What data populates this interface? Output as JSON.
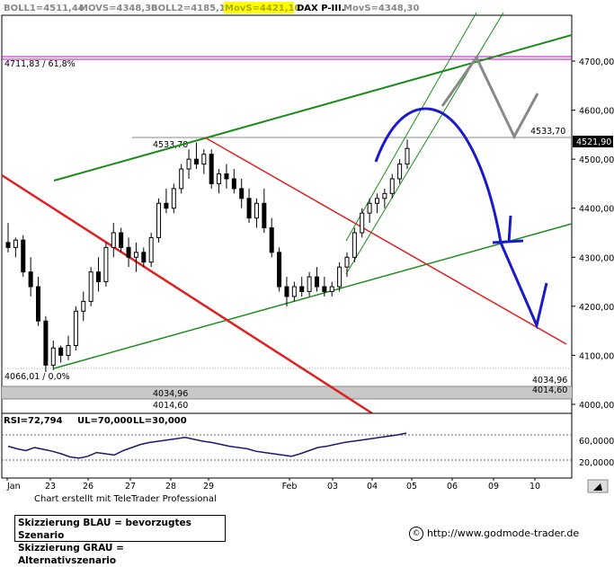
{
  "header": {
    "boll1": "BOLL1=4511,44",
    "movs": "MOVS=4348,30",
    "boll2": "BOLL2=4185,17",
    "movs_s": "MovS=4421,10",
    "title": "DAX P-III.",
    "movs2": "MovS=4348,30"
  },
  "price_axis": {
    "ticks": [
      4000,
      4100,
      4200,
      4300,
      4400,
      4500,
      4600,
      4700
    ],
    "tick_labels": [
      "4000,00",
      "4100,00",
      "4200,00",
      "4300,00",
      "4400,00",
      "4500,00",
      "4600,00",
      "4700,00"
    ],
    "current_price": "4521,90"
  },
  "date_axis": {
    "labels": [
      "Jan",
      "23",
      "26",
      "27",
      "28",
      "29",
      "Feb",
      "03",
      "04",
      "05",
      "06",
      "09",
      "10"
    ]
  },
  "annotations": {
    "fib_high": "4711,83 / 61,8%",
    "fib_low": "4066,01 / 0,0%",
    "high_left": "4533,70",
    "high_right": "4533,70",
    "level_4034_left": "4034,96",
    "level_4034_right": "4034,96",
    "level_4014_left": "4014,60",
    "level_4014_right": "4014,60"
  },
  "rsi": {
    "label": "RSI=72,794",
    "ul": "UL=70,000",
    "ll": "LL=30,000",
    "ticks": [
      "60,0000",
      "20,0000"
    ],
    "values": [
      52,
      48,
      45,
      50,
      47,
      44,
      40,
      35,
      33,
      36,
      42,
      40,
      38,
      45,
      50,
      55,
      58,
      60,
      62,
      64,
      66,
      63,
      60,
      58,
      55,
      52,
      50,
      48,
      44,
      42,
      40,
      38,
      36,
      40,
      45,
      50,
      52,
      55,
      58,
      60,
      62,
      64,
      66,
      68,
      70,
      72.8
    ]
  },
  "chart_data": {
    "type": "candlestick",
    "title": "DAX P-III.",
    "ylim": [
      4000,
      4750
    ],
    "x_labels": [
      "Jan",
      "23",
      "26",
      "27",
      "28",
      "29",
      "Feb",
      "03",
      "04",
      "05",
      "06",
      "09",
      "10"
    ],
    "candles": [
      {
        "o": 4330,
        "h": 4370,
        "l": 4310,
        "c": 4320
      },
      {
        "o": 4320,
        "h": 4340,
        "l": 4300,
        "c": 4335
      },
      {
        "o": 4335,
        "h": 4345,
        "l": 4260,
        "c": 4270
      },
      {
        "o": 4270,
        "h": 4300,
        "l": 4220,
        "c": 4240
      },
      {
        "o": 4240,
        "h": 4260,
        "l": 4160,
        "c": 4170
      },
      {
        "o": 4170,
        "h": 4180,
        "l": 4066,
        "c": 4080
      },
      {
        "o": 4080,
        "h": 4130,
        "l": 4070,
        "c": 4115
      },
      {
        "o": 4115,
        "h": 4120,
        "l": 4085,
        "c": 4100
      },
      {
        "o": 4100,
        "h": 4140,
        "l": 4090,
        "c": 4120
      },
      {
        "o": 4120,
        "h": 4200,
        "l": 4110,
        "c": 4190
      },
      {
        "o": 4190,
        "h": 4230,
        "l": 4170,
        "c": 4210
      },
      {
        "o": 4210,
        "h": 4280,
        "l": 4200,
        "c": 4270
      },
      {
        "o": 4270,
        "h": 4300,
        "l": 4230,
        "c": 4250
      },
      {
        "o": 4250,
        "h": 4330,
        "l": 4240,
        "c": 4320
      },
      {
        "o": 4320,
        "h": 4370,
        "l": 4300,
        "c": 4350
      },
      {
        "o": 4350,
        "h": 4360,
        "l": 4310,
        "c": 4320
      },
      {
        "o": 4320,
        "h": 4340,
        "l": 4280,
        "c": 4300
      },
      {
        "o": 4300,
        "h": 4330,
        "l": 4270,
        "c": 4310
      },
      {
        "o": 4310,
        "h": 4320,
        "l": 4280,
        "c": 4290
      },
      {
        "o": 4290,
        "h": 4350,
        "l": 4280,
        "c": 4340
      },
      {
        "o": 4340,
        "h": 4420,
        "l": 4330,
        "c": 4410
      },
      {
        "o": 4410,
        "h": 4440,
        "l": 4390,
        "c": 4400
      },
      {
        "o": 4400,
        "h": 4450,
        "l": 4390,
        "c": 4440
      },
      {
        "o": 4440,
        "h": 4490,
        "l": 4430,
        "c": 4480
      },
      {
        "o": 4480,
        "h": 4520,
        "l": 4460,
        "c": 4500
      },
      {
        "o": 4500,
        "h": 4534,
        "l": 4480,
        "c": 4490
      },
      {
        "o": 4490,
        "h": 4520,
        "l": 4470,
        "c": 4510
      },
      {
        "o": 4510,
        "h": 4520,
        "l": 4440,
        "c": 4450
      },
      {
        "o": 4450,
        "h": 4480,
        "l": 4430,
        "c": 4470
      },
      {
        "o": 4470,
        "h": 4490,
        "l": 4440,
        "c": 4460
      },
      {
        "o": 4460,
        "h": 4480,
        "l": 4430,
        "c": 4440
      },
      {
        "o": 4440,
        "h": 4460,
        "l": 4400,
        "c": 4420
      },
      {
        "o": 4420,
        "h": 4440,
        "l": 4370,
        "c": 4380
      },
      {
        "o": 4380,
        "h": 4420,
        "l": 4360,
        "c": 4410
      },
      {
        "o": 4410,
        "h": 4440,
        "l": 4350,
        "c": 4360
      },
      {
        "o": 4360,
        "h": 4380,
        "l": 4300,
        "c": 4310
      },
      {
        "o": 4310,
        "h": 4320,
        "l": 4230,
        "c": 4240
      },
      {
        "o": 4240,
        "h": 4260,
        "l": 4200,
        "c": 4220
      },
      {
        "o": 4220,
        "h": 4250,
        "l": 4210,
        "c": 4240
      },
      {
        "o": 4240,
        "h": 4260,
        "l": 4220,
        "c": 4230
      },
      {
        "o": 4230,
        "h": 4270,
        "l": 4220,
        "c": 4260
      },
      {
        "o": 4260,
        "h": 4280,
        "l": 4230,
        "c": 4240
      },
      {
        "o": 4240,
        "h": 4260,
        "l": 4220,
        "c": 4230
      },
      {
        "o": 4230,
        "h": 4250,
        "l": 4220,
        "c": 4240
      },
      {
        "o": 4240,
        "h": 4290,
        "l": 4230,
        "c": 4280
      },
      {
        "o": 4280,
        "h": 4310,
        "l": 4260,
        "c": 4300
      },
      {
        "o": 4300,
        "h": 4360,
        "l": 4290,
        "c": 4350
      },
      {
        "o": 4350,
        "h": 4400,
        "l": 4340,
        "c": 4390
      },
      {
        "o": 4390,
        "h": 4420,
        "l": 4370,
        "c": 4410
      },
      {
        "o": 4410,
        "h": 4430,
        "l": 4390,
        "c": 4420
      },
      {
        "o": 4420,
        "h": 4440,
        "l": 4400,
        "c": 4430
      },
      {
        "o": 4430,
        "h": 4470,
        "l": 4420,
        "c": 4460
      },
      {
        "o": 4460,
        "h": 4500,
        "l": 4450,
        "c": 4490
      },
      {
        "o": 4490,
        "h": 4540,
        "l": 4480,
        "c": 4521.9
      }
    ],
    "levels": [
      4711.83,
      4533.7,
      4066.01,
      4034.96,
      4014.6
    ],
    "legend": [
      "Skizzierung BLAU = bevorzugtes Szenario",
      "Skizzierung GRAU = Alternativszenario"
    ]
  },
  "footer": {
    "credit": "Chart erstellt mit TeleTrader Professional",
    "url": "http://www.godmode-trader.de",
    "legend_blue": "Skizzierung BLAU = bevorzugtes Szenario",
    "legend_grey": "Skizzierung GRAU = Alternativszenario"
  },
  "colors": {
    "trend_green": "#1a8c1a",
    "trend_red": "#e02020",
    "scenario_blue": "#1a1acc",
    "scenario_grey": "#888888",
    "fib_line": "#cc00cc",
    "movs_highlight": "#ffff00"
  }
}
